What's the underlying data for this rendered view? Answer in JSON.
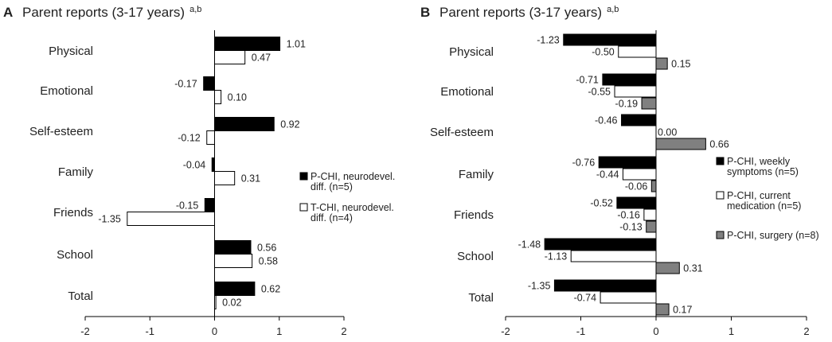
{
  "chart_data": [
    {
      "type": "bar",
      "orientation": "horizontal",
      "panel_label": "A",
      "title": "Parent reports (3-17 years)",
      "title_superscript": "a,b",
      "categories": [
        "Physical",
        "Emotional",
        "Self-esteem",
        "Family",
        "Friends",
        "School",
        "Total"
      ],
      "xlim": [
        -2,
        2
      ],
      "xticks": [
        "-2",
        "-1",
        "0",
        "1",
        "2"
      ],
      "legend_position": "right",
      "series": [
        {
          "name": "P-CHI, neurodevel. diff. (n=5)",
          "legend_lines": [
            "P-CHI, neurodevel.",
            "diff. (n=5)"
          ],
          "color": "#000000",
          "values": [
            1.01,
            -0.17,
            0.92,
            -0.04,
            -0.15,
            0.56,
            0.62
          ],
          "labels": [
            "1.01",
            "-0.17",
            "0.92",
            "-0.04",
            "-0.15",
            "0.56",
            "0.62"
          ]
        },
        {
          "name": "T-CHI, neurodevel. diff. (n=4)",
          "legend_lines": [
            "T-CHI, neurodevel.",
            "diff. (n=4)"
          ],
          "color": "#ffffff",
          "values": [
            0.47,
            0.1,
            -0.12,
            0.31,
            -1.35,
            0.58,
            0.02
          ],
          "labels": [
            "0.47",
            "0.10",
            "-0.12",
            "0.31",
            "-1.35",
            "0.58",
            "0.02"
          ]
        }
      ]
    },
    {
      "type": "bar",
      "orientation": "horizontal",
      "panel_label": "B",
      "title": "Parent reports (3-17 years)",
      "title_superscript": "a,b",
      "categories": [
        "Physical",
        "Emotional",
        "Self-esteem",
        "Family",
        "Friends",
        "School",
        "Total"
      ],
      "xlim": [
        -2,
        2
      ],
      "xticks": [
        "-2",
        "-1",
        "0",
        "1",
        "2"
      ],
      "legend_position": "right",
      "series": [
        {
          "name": "P-CHI, weekly symptoms (n=5)",
          "legend_lines": [
            "P-CHI, weekly",
            "symptoms (n=5)"
          ],
          "color": "#000000",
          "values": [
            -1.23,
            -0.71,
            -0.46,
            -0.76,
            -0.52,
            -1.48,
            -1.35
          ],
          "labels": [
            "-1.23",
            "-0.71",
            "-0.46",
            "-0.76",
            "-0.52",
            "-1.48",
            "-1.35"
          ]
        },
        {
          "name": "P-CHI, current medication (n=5)",
          "legend_lines": [
            "P-CHI, current",
            "medication (n=5)"
          ],
          "color": "#ffffff",
          "values": [
            -0.5,
            -0.55,
            0.0,
            -0.44,
            -0.16,
            -1.13,
            -0.74
          ],
          "labels": [
            "-0.50",
            "-0.55",
            "",
            "-0.44",
            "-0.16",
            "-1.13",
            "-0.74"
          ]
        },
        {
          "name": "P-CHI, surgery (n=8)",
          "legend_lines": [
            "P-CHI, surgery (n=8)"
          ],
          "color": "#808080",
          "values": [
            0.15,
            -0.19,
            0.66,
            -0.06,
            -0.13,
            0.31,
            0.17
          ],
          "labels": [
            "0.15",
            "-0.19",
            "0.66",
            "-0.06",
            "-0.13",
            "0.31",
            "0.17"
          ]
        }
      ],
      "extra_labels": [
        {
          "category": "Self-esteem",
          "text": "0.00"
        }
      ]
    }
  ]
}
